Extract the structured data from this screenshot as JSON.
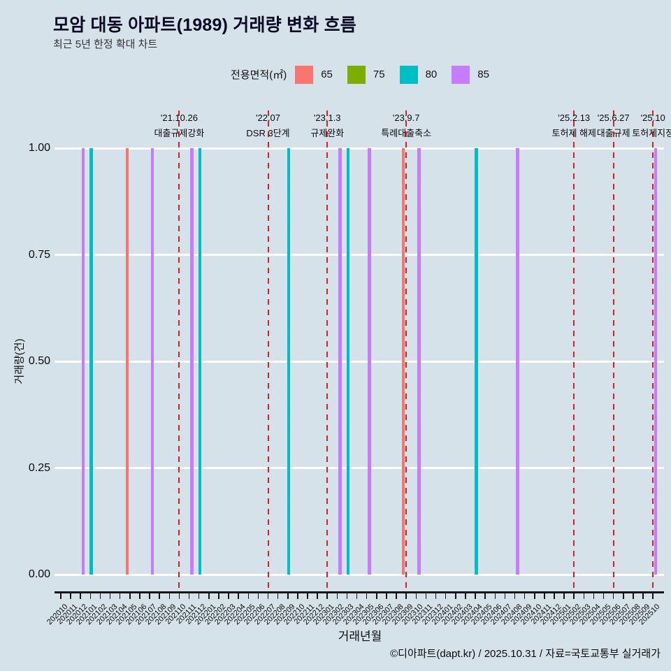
{
  "page": {
    "background_color": "#d6e2e9",
    "footer": "©디아파트(dapt.kr) / 2025.10.31 / 자료=국토교통부 실거래가"
  },
  "chart_data": {
    "type": "bar",
    "title": "모암 대동 아파트(1989) 거래량 변화 흐름",
    "subtitle": "최근 5년 한정 확대 차트",
    "xlabel": "거래년월",
    "ylabel": "거래량(건)",
    "ylim": [
      0,
      1
    ],
    "yticks": [
      {
        "value": 1.0,
        "label": "1.00"
      },
      {
        "value": 0.75,
        "label": "0.75"
      },
      {
        "value": 0.5,
        "label": "0.50"
      },
      {
        "value": 0.25,
        "label": "0.25"
      },
      {
        "value": 0.0,
        "label": "0.00"
      }
    ],
    "grid": "horizontal",
    "grid_color": "#ffffff",
    "categories": [
      "202010",
      "202011",
      "202012",
      "202101",
      "202102",
      "202103",
      "202104",
      "202105",
      "202106",
      "202107",
      "202108",
      "202109",
      "202110",
      "202111",
      "202112",
      "202201",
      "202202",
      "202203",
      "202204",
      "202205",
      "202206",
      "202207",
      "202208",
      "202209",
      "202210",
      "202211",
      "202212",
      "202301",
      "202302",
      "202303",
      "202304",
      "202305",
      "202306",
      "202307",
      "202308",
      "202309",
      "202310",
      "202311",
      "202312",
      "202401",
      "202402",
      "202403",
      "202404",
      "202405",
      "202406",
      "202407",
      "202408",
      "202409",
      "202410",
      "202411",
      "202412",
      "202501",
      "202502",
      "202503",
      "202504",
      "202505",
      "202506",
      "202507",
      "202508",
      "202509",
      "202510"
    ],
    "legend": {
      "title": "전용면적(㎡)",
      "position": "top-center",
      "entries": [
        {
          "label": "65",
          "color": "#F8766D"
        },
        {
          "label": "75",
          "color": "#7CAE00"
        },
        {
          "label": "80",
          "color": "#00BFC4"
        },
        {
          "label": "85",
          "color": "#C77CFF"
        }
      ]
    },
    "bars": [
      {
        "month": "202012",
        "size": "85",
        "value": 1
      },
      {
        "month": "202101",
        "size": "80",
        "value": 1
      },
      {
        "month": "202105",
        "size": "65",
        "value": 1
      },
      {
        "month": "202107",
        "size": "85",
        "value": 1
      },
      {
        "month": "202111",
        "size": "85",
        "value": 1
      },
      {
        "month": "202112",
        "size": "80",
        "value": 1
      },
      {
        "month": "202209",
        "size": "80",
        "value": 1
      },
      {
        "month": "202302",
        "size": "85",
        "value": 1
      },
      {
        "month": "202303",
        "size": "80",
        "value": 1
      },
      {
        "month": "202305",
        "size": "85",
        "value": 1
      },
      {
        "month": "202309",
        "size": "65",
        "value": 1
      },
      {
        "month": "202310",
        "size": "85",
        "value": 1
      },
      {
        "month": "202404",
        "size": "80",
        "value": 1
      },
      {
        "month": "202408",
        "size": "85",
        "value": 1
      },
      {
        "month": "202510",
        "size": "85",
        "value": 1
      }
    ],
    "annotation_line_color": "#dc1f1f",
    "annotations": [
      {
        "month": "202110",
        "date": "'21.10.26",
        "label": "대출규제강화"
      },
      {
        "month": "202207",
        "date": "'22.07",
        "label": "DSR 3단계"
      },
      {
        "month": "202301",
        "date": "'23.1.3",
        "label": "규제완화"
      },
      {
        "month": "202309",
        "date": "'23.9.7",
        "label": "특례대출축소"
      },
      {
        "month": "202502",
        "date": "'25.2.13",
        "label": "토허제 해제"
      },
      {
        "month": "202506",
        "date": "'25.6.27",
        "label": "대출규제"
      },
      {
        "month": "202510",
        "date": "'25.10",
        "label": "토허제지정"
      }
    ]
  }
}
